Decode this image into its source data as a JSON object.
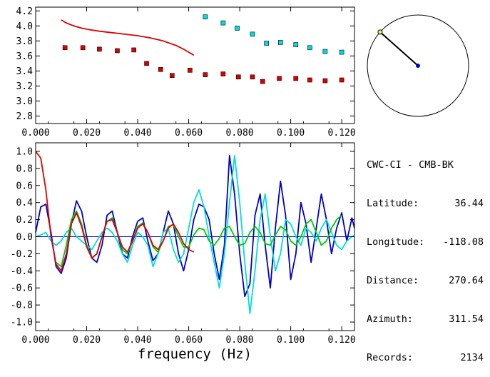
{
  "info": {
    "station": "CWC-CI - CMB-BK",
    "rows": [
      {
        "label": "Latitude:",
        "value": "36.44"
      },
      {
        "label": "Longitude:",
        "value": "-118.08"
      },
      {
        "label": "Distance:",
        "value": "270.64"
      },
      {
        "label": "Azimuth:",
        "value": "311.54"
      },
      {
        "label": "Records:",
        "value": "2134"
      }
    ]
  },
  "azimuth_deg": 311.54,
  "chart_data": [
    {
      "type": "scatter",
      "xlim": [
        0,
        0.125
      ],
      "ylim": [
        2.7,
        4.25
      ],
      "xticks": [
        "0.000",
        "0.020",
        "0.040",
        "0.060",
        "0.080",
        "0.100",
        "0.120"
      ],
      "yticks": [
        "2.8",
        "3.0",
        "3.2",
        "3.4",
        "3.6",
        "3.8",
        "4.0",
        "4.2"
      ],
      "xlabel": "",
      "ylabel": "",
      "series": [
        {
          "color": "#dd0000",
          "kind": "line",
          "x": [
            0.01,
            0.012,
            0.015,
            0.018,
            0.021,
            0.025,
            0.03,
            0.035,
            0.04,
            0.045,
            0.05,
            0.055,
            0.058,
            0.06,
            0.062
          ],
          "y": [
            4.08,
            4.04,
            4.0,
            3.97,
            3.95,
            3.93,
            3.91,
            3.89,
            3.87,
            3.84,
            3.8,
            3.74,
            3.69,
            3.65,
            3.61
          ]
        },
        {
          "color": "#dd0000",
          "kind": "points",
          "x": [
            0.0115,
            0.0185,
            0.025,
            0.032,
            0.0385,
            0.0435,
            0.049,
            0.0535,
            0.0605,
            0.0665,
            0.0735,
            0.0795,
            0.085,
            0.089,
            0.0955,
            0.102,
            0.1075,
            0.1135,
            0.12
          ],
          "y": [
            3.71,
            3.71,
            3.69,
            3.67,
            3.68,
            3.5,
            3.42,
            3.34,
            3.41,
            3.35,
            3.36,
            3.32,
            3.32,
            3.26,
            3.3,
            3.3,
            3.28,
            3.27,
            3.28
          ]
        },
        {
          "color": "#00dddd",
          "kind": "points",
          "x": [
            0.0665,
            0.0735,
            0.079,
            0.085,
            0.0905,
            0.096,
            0.102,
            0.1075,
            0.1135,
            0.12
          ],
          "y": [
            4.12,
            4.04,
            3.97,
            3.89,
            3.77,
            3.78,
            3.75,
            3.71,
            3.66,
            3.65
          ]
        }
      ]
    },
    {
      "type": "line",
      "xlim": [
        0,
        0.125
      ],
      "ylim": [
        -1.1,
        1.1
      ],
      "xticks": [
        "0.000",
        "0.020",
        "0.040",
        "0.060",
        "0.080",
        "0.100",
        "0.120"
      ],
      "yticks": [
        "1.0",
        "0.8",
        "0.6",
        "0.4",
        "0.2",
        "0.0",
        "-0.2",
        "-0.4",
        "-0.6",
        "-0.8",
        "-1.0"
      ],
      "xlabel": "frequency (Hz)",
      "ylabel": "",
      "series": [
        {
          "color": "#0000cc",
          "x": [
            0.0,
            0.002,
            0.004,
            0.006,
            0.008,
            0.01,
            0.012,
            0.014,
            0.016,
            0.018,
            0.02,
            0.022,
            0.024,
            0.026,
            0.028,
            0.03,
            0.032,
            0.034,
            0.036,
            0.038,
            0.04,
            0.042,
            0.044,
            0.046,
            0.048,
            0.05,
            0.052,
            0.054,
            0.056,
            0.058,
            0.06,
            0.062,
            0.064,
            0.066,
            0.068,
            0.07,
            0.072,
            0.074,
            0.076,
            0.078,
            0.08,
            0.082,
            0.084,
            0.086,
            0.088,
            0.09,
            0.092,
            0.094,
            0.096,
            0.098,
            0.1,
            0.102,
            0.104,
            0.106,
            0.108,
            0.11,
            0.112,
            0.114,
            0.116,
            0.118,
            0.12,
            0.122,
            0.124,
            0.125
          ],
          "y": [
            0.05,
            0.35,
            0.38,
            0.05,
            -0.35,
            -0.43,
            -0.25,
            0.15,
            0.42,
            0.3,
            0.0,
            -0.25,
            -0.3,
            -0.1,
            0.25,
            0.3,
            0.05,
            -0.2,
            -0.25,
            0.0,
            0.18,
            0.22,
            -0.05,
            -0.28,
            -0.2,
            0.05,
            0.3,
            0.15,
            -0.2,
            -0.4,
            -0.15,
            0.2,
            0.38,
            0.35,
            0.2,
            -0.2,
            -0.5,
            -0.1,
            0.95,
            0.5,
            -0.2,
            -0.7,
            -0.55,
            0.25,
            0.5,
            -0.1,
            -0.6,
            0.1,
            0.65,
            0.25,
            -0.5,
            -0.2,
            0.4,
            0.15,
            -0.3,
            0.1,
            0.5,
            0.2,
            -0.2,
            0.1,
            0.28,
            -0.05,
            0.22,
            0.1
          ]
        },
        {
          "color": "#00dddd",
          "x": [
            0.0,
            0.002,
            0.004,
            0.006,
            0.008,
            0.01,
            0.012,
            0.014,
            0.016,
            0.018,
            0.02,
            0.022,
            0.024,
            0.026,
            0.028,
            0.03,
            0.032,
            0.034,
            0.036,
            0.038,
            0.04,
            0.042,
            0.044,
            0.046,
            0.048,
            0.05,
            0.052,
            0.054,
            0.056,
            0.058,
            0.06,
            0.062,
            0.064,
            0.066,
            0.068,
            0.07,
            0.072,
            0.074,
            0.076,
            0.078,
            0.08,
            0.082,
            0.084,
            0.086,
            0.088,
            0.09,
            0.092,
            0.094,
            0.096,
            0.098,
            0.1,
            0.102,
            0.104,
            0.106,
            0.108,
            0.11,
            0.112,
            0.114,
            0.116,
            0.118,
            0.12,
            0.122,
            0.124,
            0.125
          ],
          "y": [
            0.0,
            0.02,
            0.05,
            -0.05,
            -0.1,
            -0.05,
            0.05,
            0.1,
            0.0,
            -0.05,
            -0.1,
            -0.15,
            -0.05,
            0.05,
            0.1,
            0.05,
            -0.05,
            -0.2,
            -0.3,
            -0.1,
            0.05,
            0.0,
            -0.1,
            -0.35,
            -0.2,
            0.05,
            0.1,
            -0.15,
            -0.3,
            -0.2,
            0.1,
            0.4,
            0.55,
            0.35,
            0.0,
            -0.3,
            -0.6,
            -0.2,
            0.4,
            0.95,
            0.4,
            -0.3,
            -0.9,
            -0.4,
            0.2,
            0.5,
            0.0,
            -0.4,
            -0.2,
            0.2,
            0.15,
            0.0,
            -0.1,
            0.1,
            0.05,
            -0.05,
            0.1,
            0.2,
            0.05,
            -0.1,
            -0.15,
            -0.05,
            0.0,
            0.02
          ]
        },
        {
          "color": "#00cc00",
          "x": [
            0.008,
            0.01,
            0.012,
            0.014,
            0.016,
            0.018,
            0.02,
            0.022,
            0.024,
            0.026,
            0.028,
            0.03,
            0.032,
            0.034,
            0.036,
            0.038,
            0.04,
            0.042,
            0.044,
            0.046,
            0.048,
            0.05,
            0.052,
            0.054,
            0.056,
            0.058,
            0.06,
            0.062,
            0.064,
            0.066,
            0.068,
            0.07,
            0.072,
            0.074,
            0.076,
            0.078,
            0.08,
            0.082,
            0.084,
            0.086,
            0.088,
            0.09,
            0.092,
            0.094,
            0.096,
            0.098,
            0.1,
            0.102,
            0.104,
            0.106,
            0.108,
            0.11,
            0.112,
            0.114,
            0.116,
            0.118,
            0.12
          ],
          "y": [
            -0.3,
            -0.35,
            -0.1,
            0.2,
            0.3,
            0.15,
            -0.1,
            -0.25,
            -0.2,
            0.0,
            0.18,
            0.22,
            0.05,
            -0.15,
            -0.2,
            -0.05,
            0.12,
            0.16,
            0.05,
            -0.12,
            -0.18,
            -0.05,
            0.12,
            0.14,
            0.0,
            -0.12,
            -0.12,
            0.02,
            0.1,
            0.08,
            -0.05,
            -0.1,
            -0.02,
            0.1,
            0.12,
            0.0,
            -0.1,
            -0.08,
            0.05,
            0.12,
            0.05,
            -0.08,
            -0.1,
            0.02,
            0.12,
            0.08,
            -0.05,
            -0.1,
            0.0,
            0.15,
            0.2,
            0.05,
            -0.1,
            -0.05,
            0.1,
            0.2,
            0.25
          ]
        },
        {
          "color": "#dd0000",
          "x": [
            0.0,
            0.002,
            0.004,
            0.006,
            0.008,
            0.01,
            0.012,
            0.014,
            0.016,
            0.018,
            0.02,
            0.022,
            0.024,
            0.026,
            0.028,
            0.03,
            0.032,
            0.034,
            0.036,
            0.038,
            0.04,
            0.042,
            0.044,
            0.046,
            0.048,
            0.05,
            0.052,
            0.054,
            0.056,
            0.058,
            0.06,
            0.062
          ],
          "y": [
            1.0,
            0.92,
            0.55,
            0.0,
            -0.32,
            -0.4,
            -0.2,
            0.15,
            0.28,
            0.12,
            -0.12,
            -0.25,
            -0.2,
            0.0,
            0.18,
            0.2,
            0.05,
            -0.12,
            -0.18,
            -0.05,
            0.1,
            0.15,
            0.05,
            -0.1,
            -0.15,
            -0.05,
            0.1,
            0.15,
            0.05,
            -0.08,
            -0.15,
            -0.18
          ]
        }
      ]
    }
  ]
}
